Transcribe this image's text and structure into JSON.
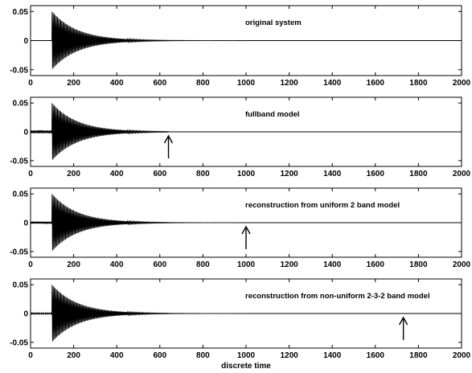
{
  "chart_data": [
    {
      "type": "line",
      "annotation": "original system",
      "xlim": [
        0,
        2000
      ],
      "ylim": [
        -0.06,
        0.06
      ],
      "xticks": [
        0,
        200,
        400,
        600,
        800,
        1000,
        1200,
        1400,
        1600,
        1800,
        2000
      ],
      "yticks": [
        -0.05,
        0,
        0.05
      ],
      "ytick_labels": [
        "-0.05",
        "0",
        "0.05"
      ],
      "signal": {
        "onset": 100,
        "peak": 0.052,
        "decay_per_sample": 0.0085,
        "period": 5,
        "pre_noise": 0
      },
      "arrow_x": null
    },
    {
      "type": "line",
      "annotation": "fullband model",
      "xlim": [
        0,
        2000
      ],
      "ylim": [
        -0.06,
        0.06
      ],
      "xticks": [
        0,
        200,
        400,
        600,
        800,
        1000,
        1200,
        1400,
        1600,
        1800,
        2000
      ],
      "yticks": [
        -0.05,
        0,
        0.05
      ],
      "ytick_labels": [
        "-0.05",
        "0",
        "0.05"
      ],
      "signal": {
        "onset": 100,
        "peak": 0.052,
        "decay_per_sample": 0.0085,
        "period": 5,
        "pre_noise": 0.003,
        "cutoff": 640
      },
      "arrow_x": 640
    },
    {
      "type": "line",
      "annotation": "reconstruction from uniform 2 band model",
      "xlim": [
        0,
        2000
      ],
      "ylim": [
        -0.06,
        0.06
      ],
      "xticks": [
        0,
        200,
        400,
        600,
        800,
        1000,
        1200,
        1400,
        1600,
        1800,
        2000
      ],
      "yticks": [
        -0.05,
        0,
        0.05
      ],
      "ytick_labels": [
        "-0.05",
        "0",
        "0.05"
      ],
      "signal": {
        "onset": 100,
        "peak": 0.052,
        "decay_per_sample": 0.0085,
        "period": 5,
        "pre_noise": 0.002,
        "cutoff": 1000
      },
      "arrow_x": 1000
    },
    {
      "type": "line",
      "annotation": "reconstruction from non-uniform 2-3-2 band model",
      "xlabel": "discrete time",
      "xlim": [
        0,
        2000
      ],
      "ylim": [
        -0.06,
        0.06
      ],
      "xticks": [
        0,
        200,
        400,
        600,
        800,
        1000,
        1200,
        1400,
        1600,
        1800,
        2000
      ],
      "yticks": [
        -0.05,
        0,
        0.05
      ],
      "ytick_labels": [
        "-0.05",
        "0",
        "0.05"
      ],
      "signal": {
        "onset": 100,
        "peak": 0.052,
        "decay_per_sample": 0.0085,
        "period": 5,
        "pre_noise": 0.001,
        "cutoff": 1730
      },
      "arrow_x": 1730
    }
  ]
}
